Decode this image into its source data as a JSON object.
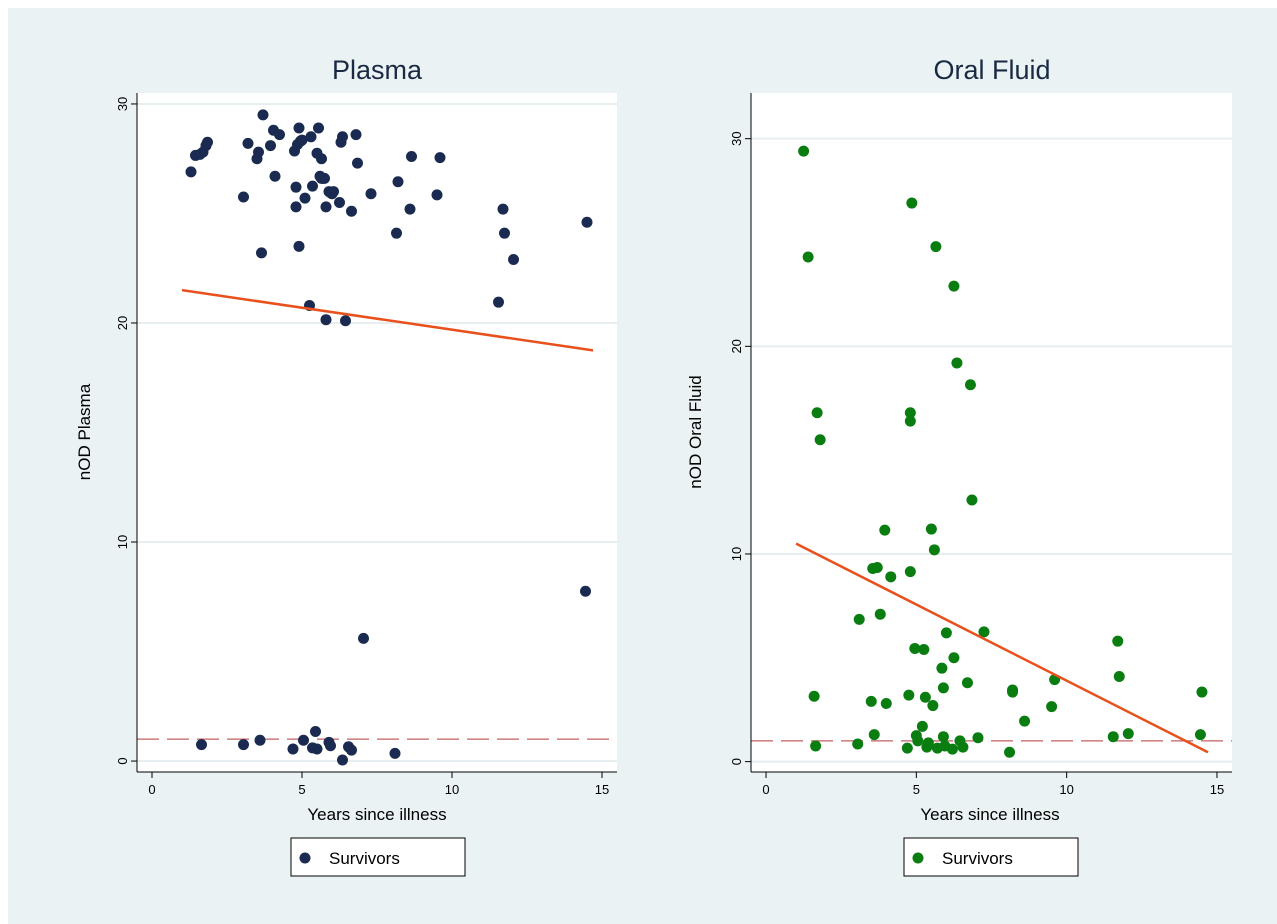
{
  "chart_data": [
    {
      "type": "scatter",
      "title": "Plasma",
      "xlabel": "Years since illness",
      "ylabel": "nOD Plasma",
      "xlim": [
        -0.5,
        15.5
      ],
      "ylim": [
        -0.5,
        30.5
      ],
      "xticks": [
        "0",
        "5",
        "10",
        "15"
      ],
      "yticks": [
        "0",
        "10",
        "20",
        "30"
      ],
      "grid": true,
      "legend": "bottom-center",
      "point_color": "#1a2a50",
      "fit_color": "#e8501c",
      "reference_color": "#c06060",
      "reference_y": 1,
      "fit_line": {
        "x": [
          1,
          14.7
        ],
        "y": [
          21.5,
          18.75
        ]
      },
      "series": [
        {
          "name": "Survivors",
          "x": [
            1.3,
            1.45,
            1.6,
            1.7,
            1.8,
            1.85,
            3.05,
            3.2,
            3.5,
            3.55,
            3.65,
            3.7,
            3.95,
            4.05,
            4.1,
            4.25,
            4.75,
            4.8,
            4.85,
            4.9,
            4.95,
            5.0,
            5.1,
            5.3,
            5.35,
            5.5,
            5.55,
            5.6,
            5.65,
            5.7,
            5.75,
            5.8,
            5.9,
            5.95,
            6.05,
            6.25,
            6.3,
            6.35,
            6.65,
            6.8,
            6.85,
            7.3,
            8.15,
            8.2,
            8.6,
            8.65,
            9.5,
            9.6,
            11.55,
            11.7,
            11.75,
            12.05,
            14.5,
            14.45,
            1.65,
            3.05,
            3.6,
            4.7,
            5.05,
            5.35,
            5.45,
            5.5,
            5.9,
            5.95,
            6.35,
            6.55,
            6.65,
            8.1,
            7.05,
            5.25,
            5.8,
            6.45,
            4.9,
            5.65,
            4.8,
            6.0
          ],
          "y": [
            26.9,
            27.65,
            27.7,
            27.8,
            28.1,
            28.25,
            25.75,
            28.2,
            27.5,
            27.8,
            23.2,
            29.5,
            28.1,
            28.8,
            26.7,
            28.6,
            27.85,
            25.3,
            28.15,
            28.9,
            28.3,
            28.35,
            25.7,
            28.5,
            26.25,
            27.75,
            28.9,
            26.7,
            27.5,
            26.6,
            26.6,
            25.3,
            26.0,
            25.95,
            26.0,
            25.5,
            28.25,
            28.5,
            25.1,
            28.6,
            27.3,
            25.9,
            24.1,
            26.45,
            25.2,
            27.6,
            25.85,
            27.55,
            20.95,
            25.2,
            24.1,
            22.9,
            24.6,
            7.75,
            0.75,
            0.75,
            0.95,
            0.55,
            0.95,
            0.6,
            1.35,
            0.55,
            0.85,
            0.7,
            0.05,
            0.65,
            0.5,
            0.35,
            5.6,
            20.8,
            20.15,
            20.1,
            23.5,
            26.6,
            26.2,
            25.9
          ]
        }
      ]
    },
    {
      "type": "scatter",
      "title": "Oral Fluid",
      "xlabel": "Years since illness",
      "ylabel": "nOD Oral Fluid",
      "xlim": [
        -0.5,
        15.5
      ],
      "ylim": [
        -0.5,
        32.2
      ],
      "xticks": [
        "0",
        "5",
        "10",
        "15"
      ],
      "yticks": [
        "0",
        "10",
        "20",
        "30"
      ],
      "grid": true,
      "legend": "bottom-center",
      "point_color": "#0a7d10",
      "fit_color": "#e8501c",
      "reference_color": "#c06060",
      "reference_y": 1,
      "fit_line": {
        "x": [
          1,
          14.7
        ],
        "y": [
          10.5,
          0.45
        ]
      },
      "series": [
        {
          "name": "Survivors",
          "x": [
            1.25,
            1.4,
            1.7,
            1.8,
            1.6,
            1.65,
            3.1,
            3.05,
            3.5,
            3.55,
            3.6,
            3.7,
            3.8,
            3.95,
            4.0,
            4.15,
            4.7,
            4.75,
            4.8,
            4.8,
            4.8,
            4.85,
            4.95,
            5.0,
            5.05,
            5.2,
            5.25,
            5.3,
            5.35,
            5.4,
            5.5,
            5.55,
            5.6,
            5.65,
            5.7,
            5.85,
            5.9,
            5.9,
            5.95,
            6.0,
            6.2,
            6.25,
            6.25,
            6.35,
            6.45,
            6.55,
            6.7,
            6.8,
            6.85,
            7.05,
            7.25,
            8.1,
            8.2,
            8.2,
            8.6,
            9.5,
            9.6,
            11.55,
            11.7,
            11.75,
            12.05,
            14.45,
            14.5
          ],
          "y": [
            29.4,
            24.3,
            16.8,
            15.5,
            3.15,
            0.75,
            6.85,
            0.85,
            2.9,
            9.3,
            1.3,
            9.35,
            7.1,
            11.15,
            2.8,
            8.9,
            0.65,
            3.2,
            16.4,
            16.8,
            9.15,
            26.9,
            5.45,
            1.25,
            1.0,
            1.7,
            5.4,
            3.1,
            0.7,
            0.9,
            11.2,
            2.7,
            10.2,
            24.8,
            0.65,
            4.5,
            3.55,
            1.2,
            0.75,
            6.2,
            0.6,
            5.0,
            22.9,
            19.2,
            1.0,
            0.7,
            3.8,
            18.15,
            12.6,
            1.15,
            6.25,
            0.45,
            3.45,
            3.35,
            1.95,
            2.65,
            3.95,
            1.2,
            5.8,
            4.1,
            1.35,
            1.3,
            3.35
          ]
        }
      ]
    }
  ]
}
